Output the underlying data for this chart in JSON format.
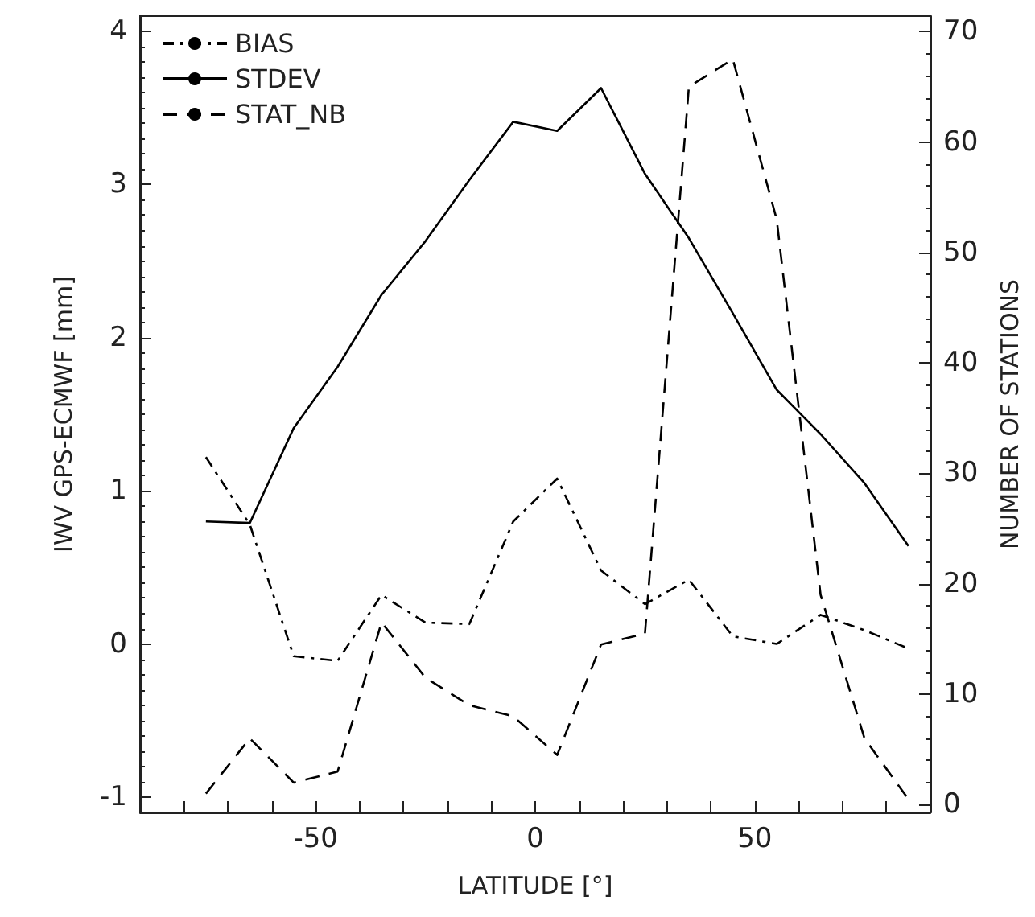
{
  "chart_data": {
    "type": "line",
    "xlabel": "LATITUDE [°]",
    "ylabel": "IWV GPS-ECMWF [mm]",
    "y2label": "NUMBER OF STATIONS",
    "x": [
      -75,
      -65,
      -55,
      -45,
      -35,
      -25,
      -15,
      -5,
      5,
      15,
      25,
      35,
      45,
      55,
      65,
      75,
      85
    ],
    "series": [
      {
        "name": "BIAS",
        "color": "#000000",
        "line_style": "dashdot",
        "values": [
          1.22,
          0.78,
          -0.08,
          -0.11,
          0.32,
          0.14,
          0.13,
          0.8,
          1.08,
          0.48,
          0.26,
          0.42,
          0.05,
          0.0,
          0.19,
          0.09,
          -0.03
        ]
      },
      {
        "name": "STDEV",
        "color": "#000000",
        "line_style": "solid",
        "values": [
          0.8,
          0.79,
          1.41,
          1.81,
          2.28,
          2.63,
          3.03,
          3.41,
          3.35,
          3.63,
          3.07,
          2.65,
          2.16,
          1.66,
          1.37,
          1.05,
          0.64
        ]
      },
      {
        "name": "STAT_NB",
        "color": "#000000",
        "line_style": "dashed",
        "axis": "y2",
        "values": [
          1,
          6,
          2,
          3,
          16.5,
          11.5,
          9,
          8,
          4.5,
          14.5,
          15.5,
          65,
          67.5,
          53,
          19,
          6,
          0.5
        ]
      }
    ],
    "xlim": [
      -90,
      90
    ],
    "xticks": [
      {
        "value": -90,
        "label": null
      },
      {
        "value": -80,
        "label": null
      },
      {
        "value": -70,
        "label": null
      },
      {
        "value": -60,
        "label": null
      },
      -50,
      {
        "value": -40,
        "label": null
      },
      {
        "value": -30,
        "label": null
      },
      {
        "value": -20,
        "label": null
      },
      {
        "value": -10,
        "label": null
      },
      0,
      {
        "value": 10,
        "label": null
      },
      {
        "value": 20,
        "label": null
      },
      {
        "value": 30,
        "label": null
      },
      {
        "value": 40,
        "label": null
      },
      50,
      {
        "value": 60,
        "label": null
      },
      {
        "value": 70,
        "label": null
      },
      {
        "value": 80,
        "label": null
      },
      {
        "value": 90,
        "label": null
      }
    ],
    "ylim": [
      -1.1,
      4.1
    ],
    "yticks": [
      -1,
      0,
      1,
      2,
      3,
      4
    ],
    "y2lim": [
      -0.7,
      71.4
    ],
    "y2ticks": [
      0,
      10,
      20,
      30,
      40,
      50,
      60,
      70
    ],
    "grid": false,
    "marker": "none",
    "legend": "top left"
  }
}
